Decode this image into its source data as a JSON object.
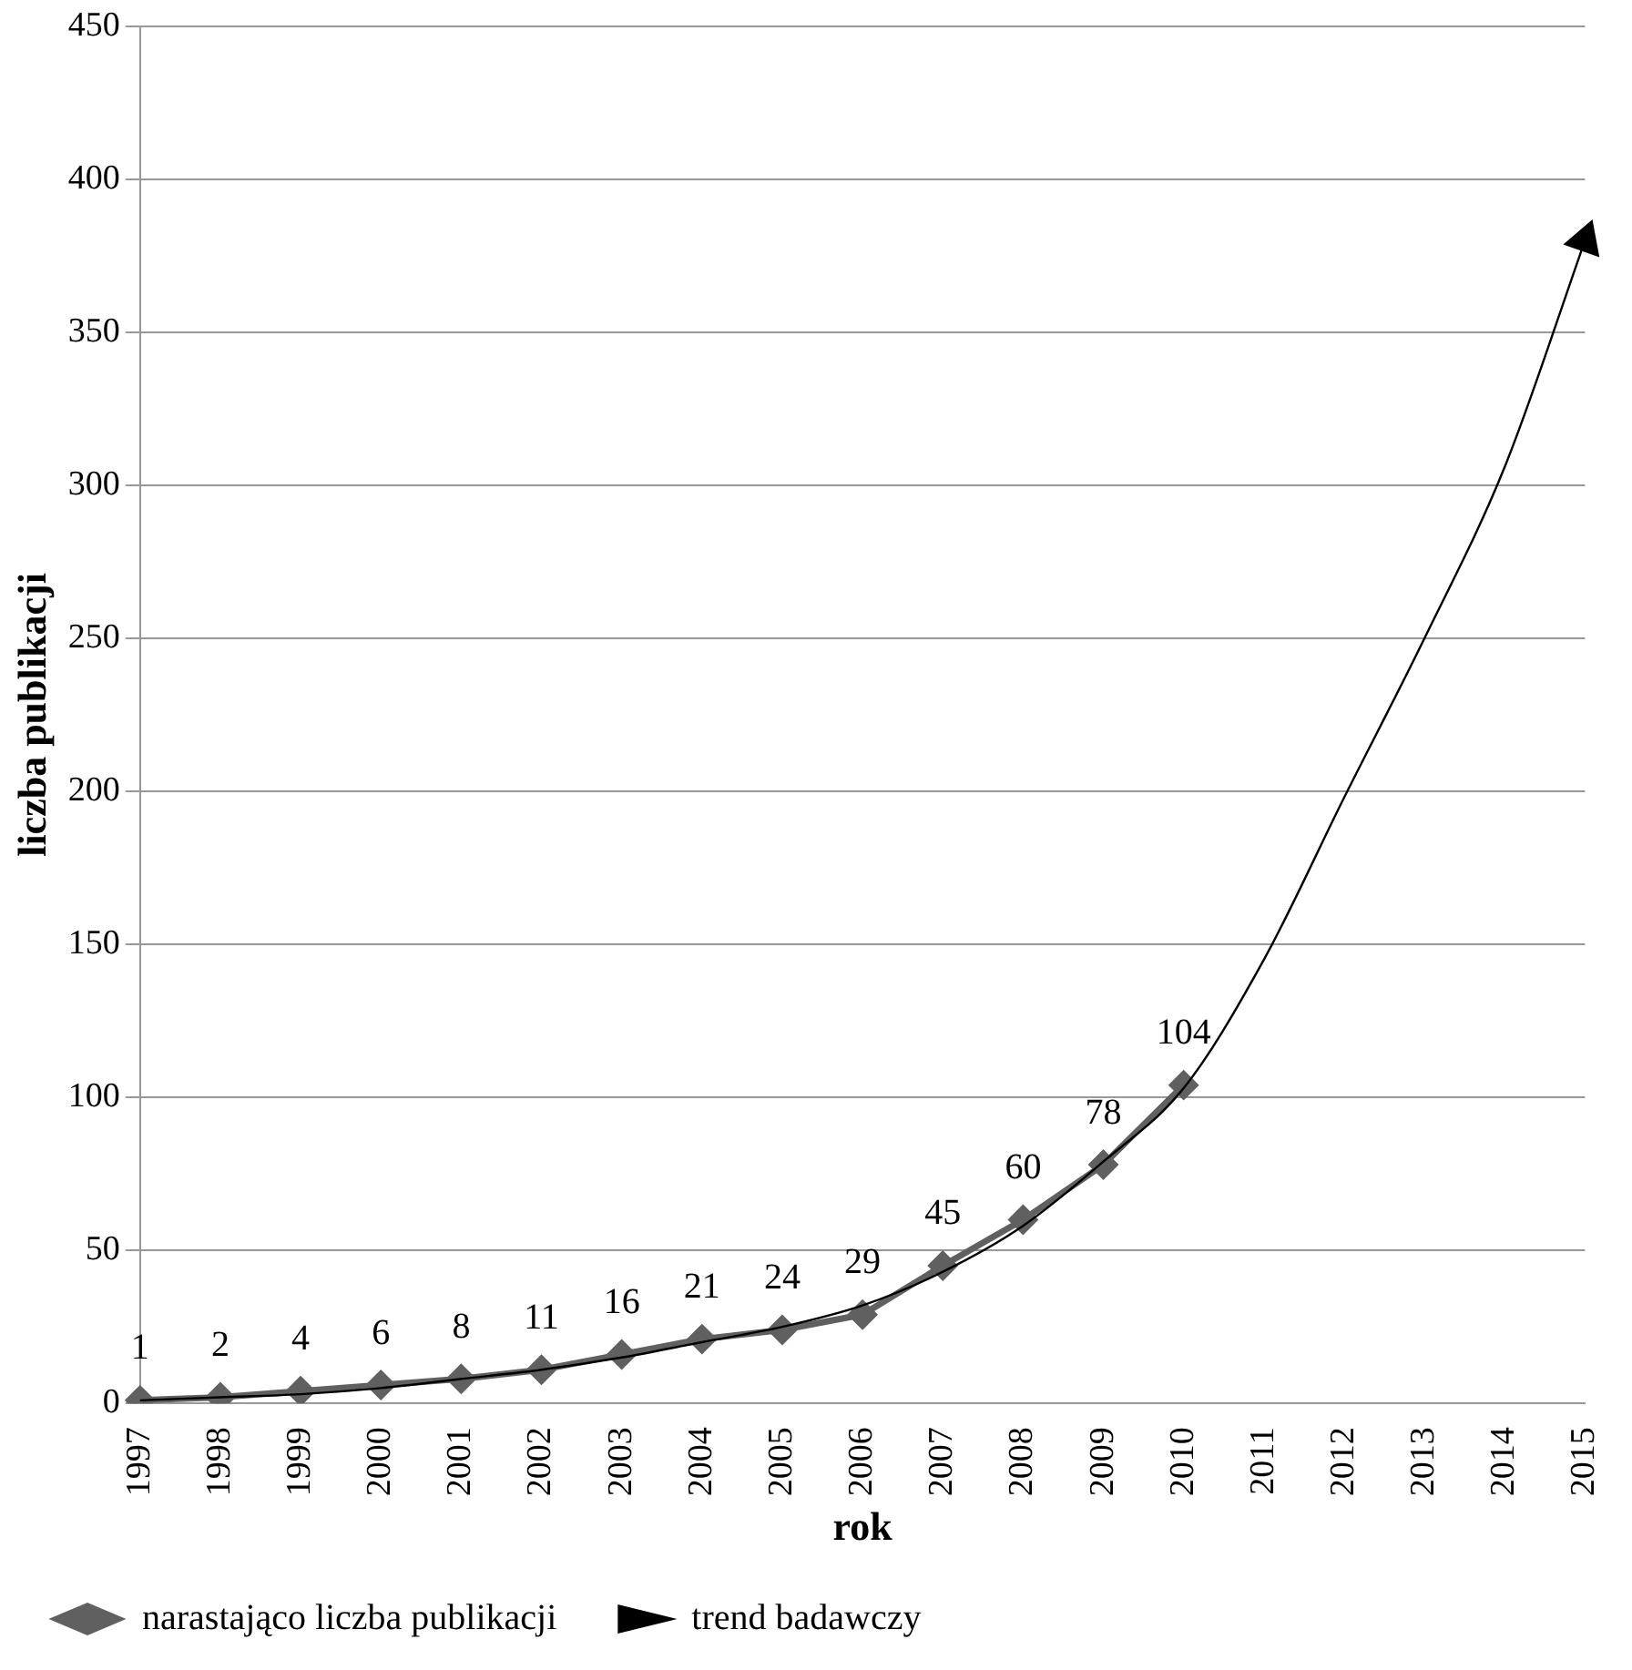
{
  "chart_data": {
    "type": "line",
    "xlabel": "rok",
    "ylabel": "liczba publikacji",
    "categories": [
      "1997",
      "1998",
      "1999",
      "2000",
      "2001",
      "2002",
      "2003",
      "2004",
      "2005",
      "2006",
      "2007",
      "2008",
      "2009",
      "2010",
      "2011",
      "2012",
      "2013",
      "2014",
      "2015"
    ],
    "series": [
      {
        "name": "narastająco liczba publikacji",
        "color": "#606060",
        "marker": "diamond",
        "data_labels": true,
        "values": [
          1,
          2,
          4,
          6,
          8,
          11,
          16,
          21,
          24,
          29,
          45,
          60,
          78,
          104,
          null,
          null,
          null,
          null,
          null
        ]
      },
      {
        "name": "trend badawczy",
        "color": "#000000",
        "marker": "none",
        "values": [
          1,
          2,
          3,
          5,
          8,
          11,
          15,
          20,
          25,
          32,
          43,
          58,
          79,
          103,
          145,
          198,
          250,
          306,
          380
        ]
      }
    ],
    "ylim": [
      0,
      450
    ],
    "yticks": [
      0,
      50,
      100,
      150,
      200,
      250,
      300,
      350,
      400,
      450
    ],
    "grid": "y",
    "legend": "bottom left"
  }
}
